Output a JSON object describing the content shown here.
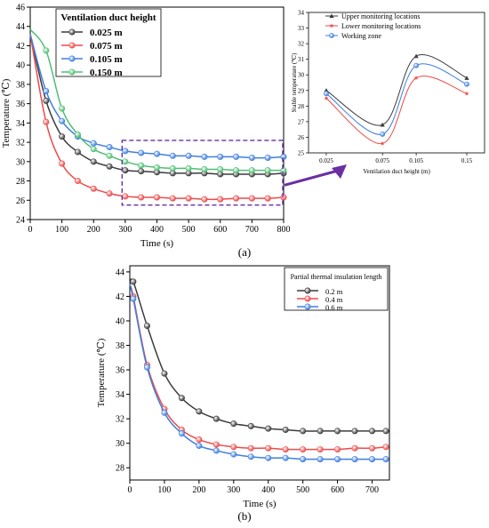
{
  "labels": {
    "panel_a": "(a)",
    "panel_b": "(b)"
  },
  "colors": {
    "black": "#3c3c3c",
    "red": "#ef4a4a",
    "blue": "#3f7fe0",
    "green": "#4fbf73",
    "callout": "#6a2fa2"
  },
  "chart_data": [
    {
      "id": "chart-a-main",
      "type": "line",
      "xlabel": "Time (s)",
      "ylabel": "Temperature (℃)",
      "xlim": [
        0,
        800
      ],
      "ylim": [
        24,
        46
      ],
      "xticks": [
        0,
        100,
        200,
        300,
        400,
        500,
        600,
        700,
        800
      ],
      "yticks": [
        24,
        26,
        28,
        30,
        32,
        34,
        36,
        38,
        40,
        42,
        44,
        46
      ],
      "legend_title": "Ventilation duct height",
      "legend_position": "top-left",
      "x": [
        0,
        50,
        100,
        150,
        200,
        250,
        300,
        350,
        400,
        450,
        500,
        550,
        600,
        650,
        700,
        750,
        800
      ],
      "series": [
        {
          "name": "0.025 m",
          "color": "black",
          "values": [
            43.2,
            36.3,
            32.6,
            31.0,
            30.0,
            29.5,
            29.1,
            29.0,
            28.9,
            28.8,
            28.8,
            28.8,
            28.7,
            28.7,
            28.7,
            28.7,
            28.8
          ]
        },
        {
          "name": "0.075 m",
          "color": "red",
          "values": [
            43.2,
            34.1,
            29.8,
            28.0,
            27.2,
            26.7,
            26.4,
            26.3,
            26.3,
            26.2,
            26.2,
            26.1,
            26.1,
            26.2,
            26.2,
            26.2,
            26.3
          ]
        },
        {
          "name": "0.105 m",
          "color": "blue",
          "values": [
            43.2,
            37.3,
            34.2,
            32.6,
            31.9,
            31.5,
            31.1,
            30.9,
            30.8,
            30.6,
            30.6,
            30.5,
            30.5,
            30.5,
            30.4,
            30.4,
            30.5
          ]
        },
        {
          "name": "0.150 m",
          "color": "green",
          "values": [
            43.7,
            41.5,
            35.5,
            32.8,
            31.3,
            30.6,
            30.0,
            29.6,
            29.4,
            29.3,
            29.3,
            29.2,
            29.2,
            29.1,
            29.1,
            29.1,
            29.1
          ]
        }
      ]
    },
    {
      "id": "chart-a-inset",
      "type": "line",
      "xlabel": "Ventilation duct height (m)",
      "ylabel": "Stable temperature (℃)",
      "ylim": [
        25,
        34
      ],
      "yticks": [
        25,
        26,
        27,
        28,
        29,
        30,
        31,
        32,
        33,
        34
      ],
      "categories": [
        "0.025",
        "0.075",
        "0.105",
        "0.15"
      ],
      "legend_position": "top-right",
      "series": [
        {
          "name": "Upper monitoring locations",
          "color": "black",
          "marker": "triangle",
          "values": [
            29.0,
            26.8,
            31.2,
            29.8
          ]
        },
        {
          "name": "Lower monitoring locations",
          "color": "red",
          "marker": "star",
          "values": [
            28.5,
            25.6,
            29.8,
            28.8
          ]
        },
        {
          "name": "Working zone",
          "color": "blue",
          "marker": "circle",
          "values": [
            28.8,
            26.2,
            30.6,
            29.4
          ]
        }
      ]
    },
    {
      "id": "chart-b",
      "type": "line",
      "xlabel": "Time (s)",
      "ylabel": "Temperature (℃)",
      "xlim": [
        0,
        750
      ],
      "ylim": [
        27,
        44.5
      ],
      "xticks": [
        0,
        100,
        200,
        300,
        400,
        500,
        600,
        700
      ],
      "yticks": [
        28,
        30,
        32,
        34,
        36,
        38,
        40,
        42,
        44
      ],
      "legend_title": "Partial thermal insulation length",
      "legend_position": "top-right",
      "x": [
        0,
        10,
        50,
        100,
        150,
        200,
        250,
        300,
        350,
        400,
        450,
        500,
        550,
        600,
        650,
        700,
        740
      ],
      "series": [
        {
          "name": "0.2 m",
          "color": "black",
          "values": [
            43.0,
            43.2,
            39.6,
            35.7,
            33.7,
            32.6,
            32.0,
            31.6,
            31.4,
            31.2,
            31.1,
            31.0,
            31.0,
            31.0,
            31.0,
            31.0,
            31.0
          ]
        },
        {
          "name": "0.4 m",
          "color": "red",
          "values": [
            43.0,
            42.0,
            36.4,
            32.8,
            31.1,
            30.3,
            29.9,
            29.7,
            29.6,
            29.6,
            29.5,
            29.5,
            29.5,
            29.5,
            29.6,
            29.6,
            29.7
          ]
        },
        {
          "name": "0.6 m",
          "color": "blue",
          "values": [
            43.0,
            41.8,
            36.2,
            32.5,
            30.8,
            29.8,
            29.4,
            29.1,
            28.9,
            28.8,
            28.8,
            28.7,
            28.7,
            28.7,
            28.7,
            28.7,
            28.7
          ]
        }
      ]
    }
  ]
}
